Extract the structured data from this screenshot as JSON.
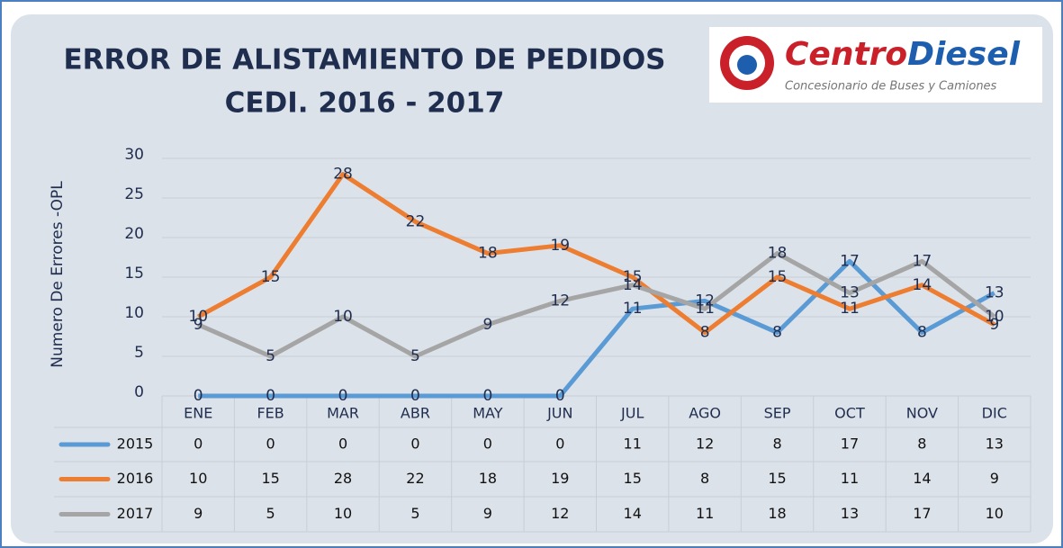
{
  "chart_data": {
    "type": "line",
    "title": "ERROR DE ALISTAMIENTO DE PEDIDOS",
    "subtitle": "CEDI. 2016 - 2017",
    "logo": {
      "brand_first": "Centro",
      "brand_second": "Diesel",
      "tagline": "Concesionario de Buses y Camiones"
    },
    "y_label": "Numero De Errores -OPL",
    "categories": [
      "ENE",
      "FEB",
      "MAR",
      "ABR",
      "MAY",
      "JUN",
      "JUL",
      "AGO",
      "SEP",
      "OCT",
      "NOV",
      "DIC"
    ],
    "series": [
      {
        "name": "2015",
        "color": "#5b9bd5",
        "values": [
          0,
          0,
          0,
          0,
          0,
          0,
          11,
          12,
          8,
          17,
          8,
          13
        ]
      },
      {
        "name": "2016",
        "color": "#ed7d31",
        "values": [
          10,
          15,
          28,
          22,
          18,
          19,
          15,
          8,
          15,
          11,
          14,
          9
        ]
      },
      {
        "name": "2017",
        "color": "#a5a5a5",
        "values": [
          9,
          5,
          10,
          5,
          9,
          12,
          14,
          11,
          18,
          13,
          17,
          10
        ]
      }
    ],
    "ylim": [
      0,
      30
    ],
    "yticks": [
      0,
      5,
      10,
      15,
      20,
      25,
      30
    ],
    "grid": true,
    "data_table": true
  }
}
